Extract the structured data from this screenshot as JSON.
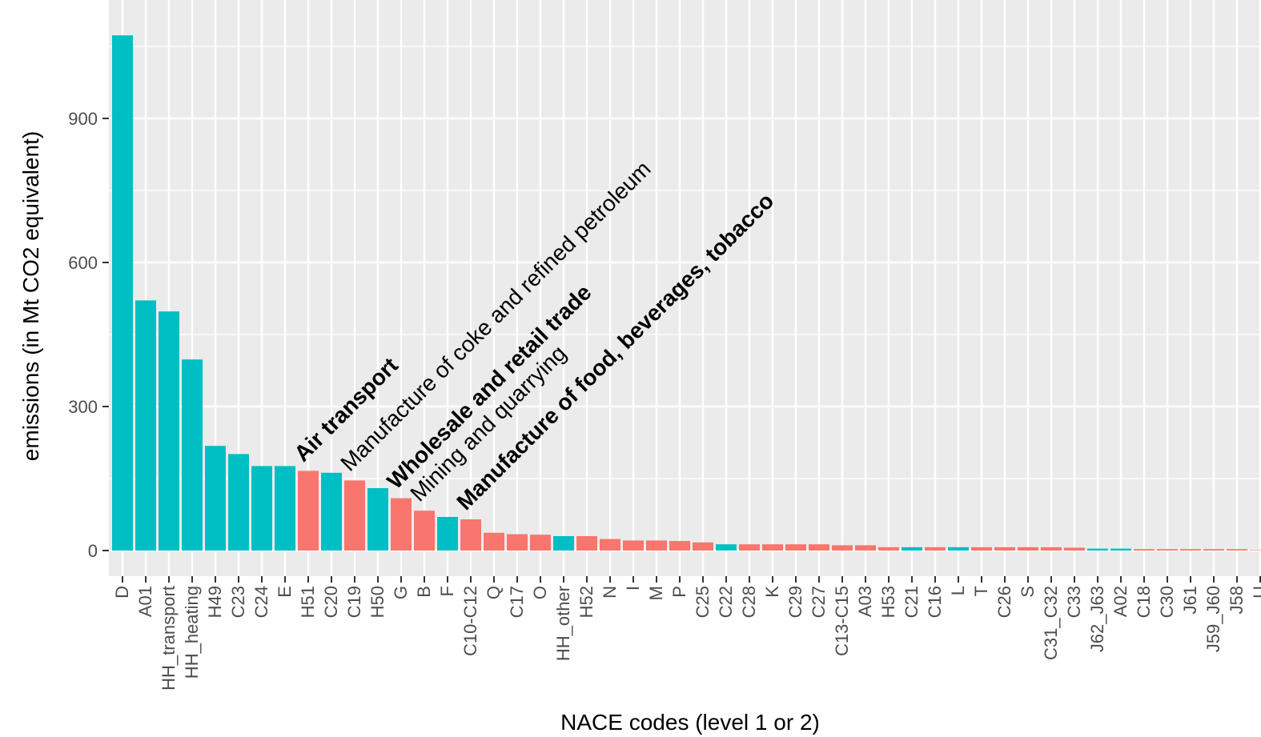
{
  "colors": {
    "panel_background": "#ebebeb",
    "grid": "#ffffff",
    "direct": "#00bfc4",
    "indirect": "#f8766d"
  },
  "chart_data": {
    "type": "bar",
    "xlabel": "NACE codes (level 1 or 2)",
    "ylabel": "emissions (in Mt CO2 equivalent)",
    "ylim": [
      0,
      1100
    ],
    "yticks": [
      0,
      300,
      600,
      900
    ],
    "grid": true,
    "legend": "none",
    "categories": [
      "D",
      "A01",
      "HH_transport",
      "HH_heating",
      "H49",
      "C23",
      "C24",
      "E",
      "H51",
      "C20",
      "C19",
      "H50",
      "G",
      "B",
      "F",
      "C10-C12",
      "Q",
      "C17",
      "O",
      "HH_other",
      "H52",
      "N",
      "I",
      "M",
      "P",
      "C25",
      "C22",
      "C28",
      "K",
      "C29",
      "C27",
      "C13-C15",
      "A03",
      "H53",
      "C21",
      "C16",
      "L",
      "T",
      "C26",
      "S",
      "C31_C32",
      "C33",
      "J62_J63",
      "A02",
      "C18",
      "C30",
      "J61",
      "J59_J60",
      "J58",
      "U"
    ],
    "values": [
      1073,
      521,
      498,
      398,
      218,
      201,
      176,
      176,
      166,
      162,
      146,
      130,
      109,
      83,
      70,
      65,
      37,
      34,
      33,
      30,
      30,
      24,
      21,
      21,
      20,
      17,
      13,
      13,
      13,
      13,
      13,
      11,
      11,
      7,
      7,
      7,
      7,
      7,
      7,
      7,
      7,
      6,
      4,
      4,
      3,
      3,
      3,
      3,
      3,
      1
    ],
    "groups": [
      "cyan",
      "cyan",
      "cyan",
      "cyan",
      "cyan",
      "cyan",
      "cyan",
      "cyan",
      "salmon",
      "cyan",
      "salmon",
      "cyan",
      "salmon",
      "salmon",
      "cyan",
      "salmon",
      "salmon",
      "salmon",
      "salmon",
      "cyan",
      "salmon",
      "salmon",
      "salmon",
      "salmon",
      "salmon",
      "salmon",
      "cyan",
      "salmon",
      "salmon",
      "salmon",
      "salmon",
      "salmon",
      "salmon",
      "salmon",
      "cyan",
      "salmon",
      "cyan",
      "salmon",
      "salmon",
      "salmon",
      "salmon",
      "salmon",
      "cyan",
      "cyan",
      "salmon",
      "salmon",
      "salmon",
      "salmon",
      "salmon",
      "salmon"
    ],
    "annotations": [
      {
        "text": "Air transport",
        "category": "H51",
        "bold": true
      },
      {
        "text": "Manufacture of coke and refined petroleum",
        "category": "C19",
        "bold": false
      },
      {
        "text": "Wholesale and retail trade",
        "category": "G",
        "bold": true
      },
      {
        "text": "Mining and quarrying",
        "category": "B",
        "bold": false
      },
      {
        "text": "Manufacture of food, beverages, tobacco",
        "category": "C10-C12",
        "bold": true
      }
    ]
  }
}
